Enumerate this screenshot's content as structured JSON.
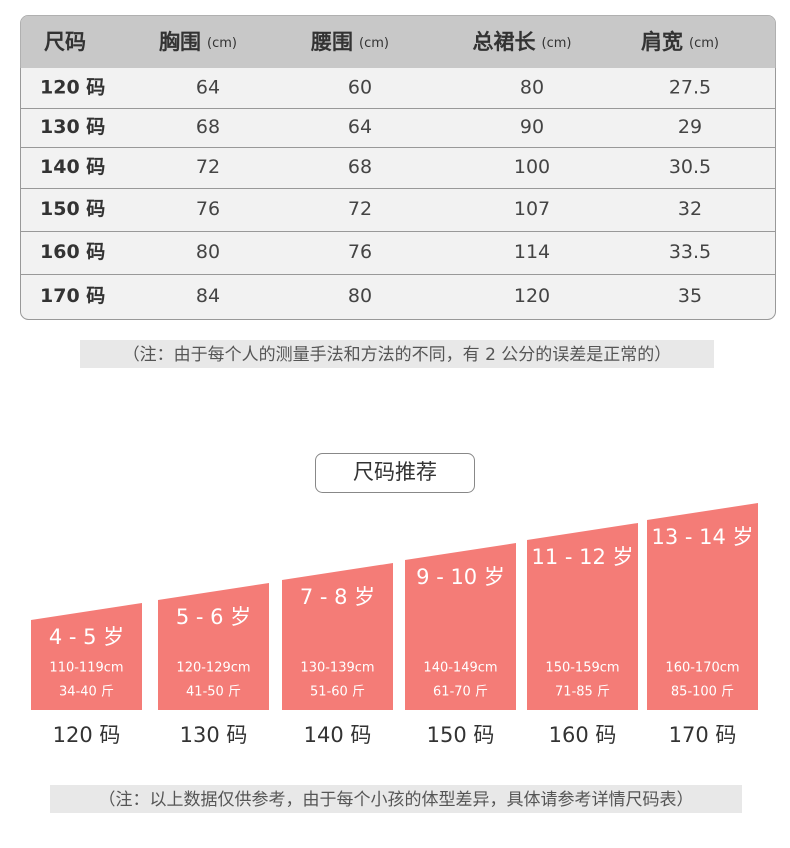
{
  "table": {
    "header": [
      {
        "name": "尺码"
      },
      {
        "name": "胸围",
        "unit": "(cm)"
      },
      {
        "name": "腰围",
        "unit": "(cm)"
      },
      {
        "name": "总裙长",
        "unit": "(cm)"
      },
      {
        "name": "肩宽",
        "unit": "(cm)"
      }
    ],
    "rows": [
      [
        "120 码",
        "64",
        "60",
        "80",
        "27.5"
      ],
      [
        "130 码",
        "68",
        "64",
        "90",
        "29"
      ],
      [
        "140 码",
        "72",
        "68",
        "100",
        "30.5"
      ],
      [
        "150 码",
        "76",
        "72",
        "107",
        "32"
      ],
      [
        "160 码",
        "80",
        "76",
        "114",
        "33.5"
      ],
      [
        "170 码",
        "84",
        "80",
        "120",
        "35"
      ]
    ]
  },
  "note1": "（注：由于每个人的测量手法和方法的不同，有 2 公分的误差是正常的）",
  "recommend": {
    "title": "尺码推荐",
    "cards": [
      {
        "age": "4 - 5 岁",
        "height": "110-119cm",
        "weight": "34-40 斤",
        "size": "120 码"
      },
      {
        "age": "5 - 6 岁",
        "height": "120-129cm",
        "weight": "41-50 斤",
        "size": "130 码"
      },
      {
        "age": "7 - 8 岁",
        "height": "130-139cm",
        "weight": "51-60 斤",
        "size": "140 码"
      },
      {
        "age": "9 - 10 岁",
        "height": "140-149cm",
        "weight": "61-70 斤",
        "size": "150 码"
      },
      {
        "age": "11 - 12 岁",
        "height": "150-159cm",
        "weight": "71-85 斤",
        "size": "160 码"
      },
      {
        "age": "13 - 14 岁",
        "height": "160-170cm",
        "weight": "85-100 斤",
        "size": "170 码"
      }
    ]
  },
  "note2": "（注：以上数据仅供参考，由于每个小孩的体型差异，具体请参考详情尺码表）"
}
